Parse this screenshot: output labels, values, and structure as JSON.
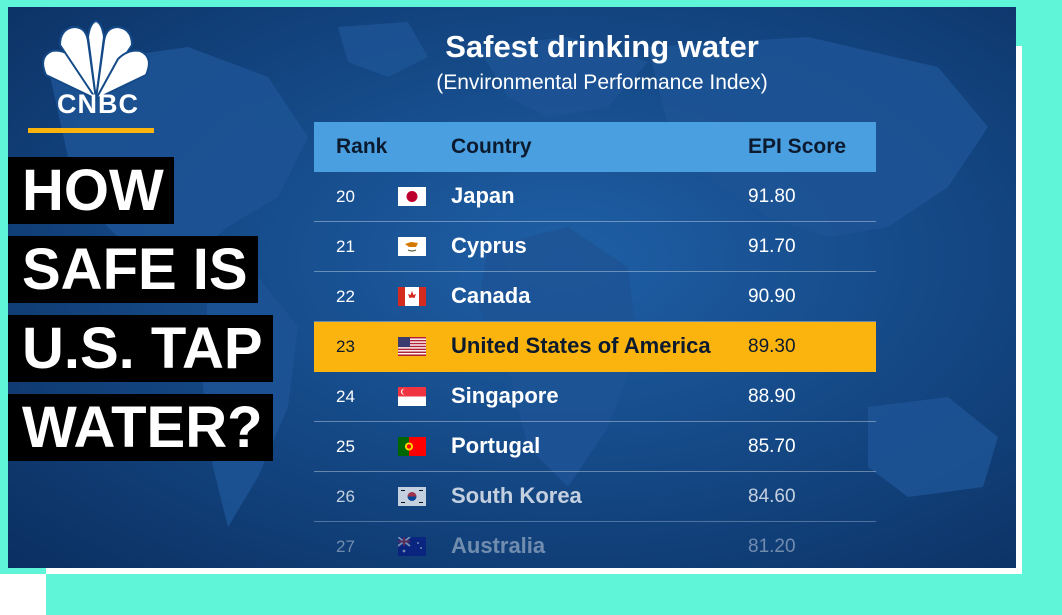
{
  "colors": {
    "accent": "#5ef5d8",
    "yellow": "#fbb40e",
    "header_bg": "#4a9fe0"
  },
  "brand": {
    "name": "CNBC",
    "logo_icon": "nbc-peacock-icon"
  },
  "headline": {
    "lines": [
      "HOW",
      "SAFE IS",
      "U.S. TAP",
      "WATER?"
    ]
  },
  "table": {
    "title": "Safest drinking water",
    "subtitle": "(Environmental Performance Index)",
    "columns": {
      "rank": "Rank",
      "country": "Country",
      "score": "EPI Score"
    },
    "rows": [
      {
        "rank": "20",
        "country": "Japan",
        "score": "91.80",
        "flag": "japan-flag-icon"
      },
      {
        "rank": "21",
        "country": "Cyprus",
        "score": "91.70",
        "flag": "cyprus-flag-icon"
      },
      {
        "rank": "22",
        "country": "Canada",
        "score": "90.90",
        "flag": "canada-flag-icon"
      },
      {
        "rank": "23",
        "country": "United States of America",
        "score": "89.30",
        "flag": "usa-flag-icon",
        "highlighted": true
      },
      {
        "rank": "24",
        "country": "Singapore",
        "score": "88.90",
        "flag": "singapore-flag-icon"
      },
      {
        "rank": "25",
        "country": "Portugal",
        "score": "85.70",
        "flag": "portugal-flag-icon"
      },
      {
        "rank": "26",
        "country": "South Korea",
        "score": "84.60",
        "flag": "south-korea-flag-icon"
      },
      {
        "rank": "27",
        "country": "Australia",
        "score": "81.20",
        "flag": "australia-flag-icon"
      }
    ]
  }
}
